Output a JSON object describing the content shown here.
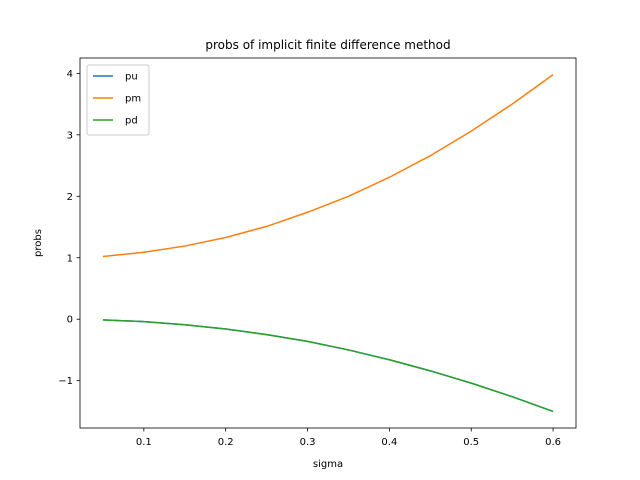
{
  "chart_data": {
    "type": "line",
    "title": "probs of implicit finite difference method",
    "xlabel": "sigma",
    "ylabel": "probs",
    "xlim": [
      0.022,
      0.628
    ],
    "ylim": [
      -1.77,
      4.25
    ],
    "xticks": [
      0.1,
      0.2,
      0.3,
      0.4,
      0.5,
      0.6
    ],
    "xtick_labels": [
      "0.1",
      "0.2",
      "0.3",
      "0.4",
      "0.5",
      "0.6"
    ],
    "yticks": [
      -1,
      0,
      1,
      2,
      3,
      4
    ],
    "ytick_labels": [
      "−1",
      "0",
      "1",
      "2",
      "3",
      "4"
    ],
    "grid": false,
    "legend_position": "top-left",
    "x": [
      0.05,
      0.1,
      0.15,
      0.2,
      0.25,
      0.3,
      0.35,
      0.4,
      0.45,
      0.5,
      0.55,
      0.6
    ],
    "series": [
      {
        "name": "pu",
        "color": "#1f77b4",
        "values": [
          -0.01,
          -0.04,
          -0.09,
          -0.16,
          -0.25,
          -0.36,
          -0.5,
          -0.66,
          -0.84,
          -1.04,
          -1.26,
          -1.5
        ]
      },
      {
        "name": "pm",
        "color": "#ff7f0e",
        "values": [
          1.02,
          1.09,
          1.19,
          1.33,
          1.51,
          1.74,
          2.0,
          2.31,
          2.66,
          3.06,
          3.5,
          3.98
        ]
      },
      {
        "name": "pd",
        "color": "#2ca02c",
        "values": [
          -0.01,
          -0.04,
          -0.09,
          -0.16,
          -0.25,
          -0.36,
          -0.5,
          -0.66,
          -0.84,
          -1.04,
          -1.26,
          -1.5
        ]
      }
    ]
  }
}
